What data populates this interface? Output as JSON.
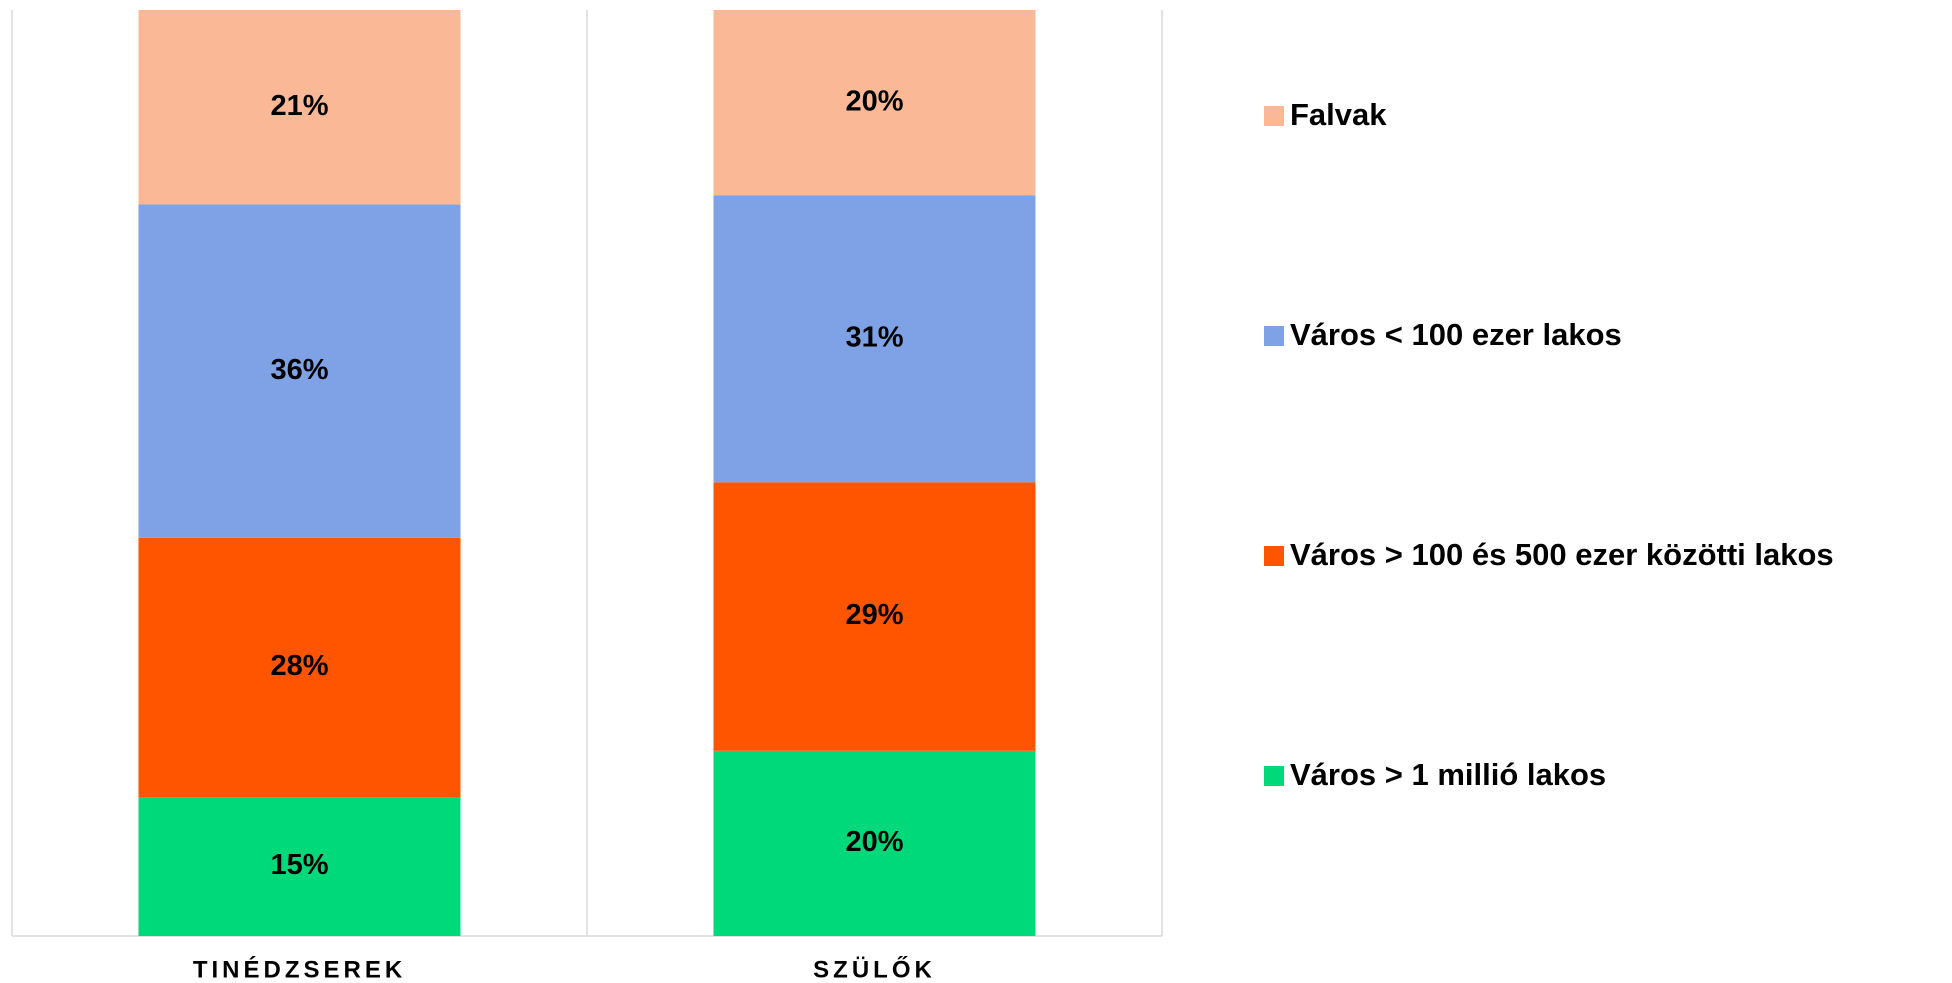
{
  "chart_data": {
    "type": "stacked_bar",
    "categories": [
      "TINÉDZSEREK",
      "SZÜLŐK"
    ],
    "series": [
      {
        "name": "Város > 1 millió lakos",
        "color": "#00d97a",
        "values": [
          15,
          20
        ],
        "value_labels": [
          "15%",
          "20%"
        ]
      },
      {
        "name": "Város > 100 és 500 ezer közötti lakos",
        "color": "#ff5500",
        "values": [
          28,
          29
        ],
        "value_labels": [
          "28%",
          "29%"
        ]
      },
      {
        "name": "Város < 100 ezer lakos",
        "color": "#7fa2e6",
        "values": [
          36,
          31
        ],
        "value_labels": [
          "36%",
          "31%"
        ]
      },
      {
        "name": "Falvak",
        "color": "#fbb897",
        "values": [
          21,
          20
        ],
        "value_labels": [
          "21%",
          "20%"
        ]
      }
    ],
    "ylim": [
      0,
      100
    ],
    "legend": "right"
  }
}
